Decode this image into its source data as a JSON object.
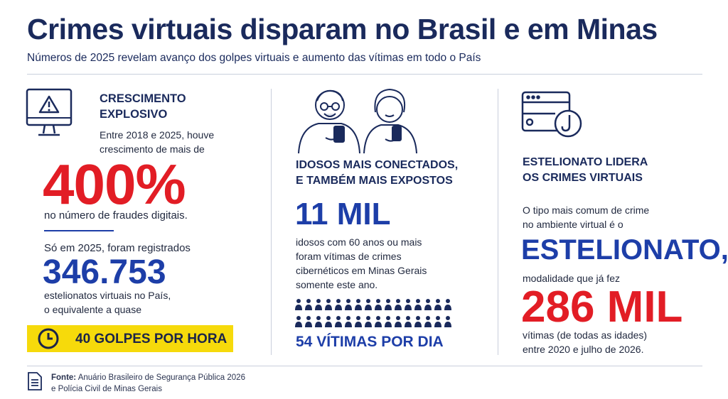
{
  "header": {
    "title": "Crimes virtuais disparam no Brasil e em Minas",
    "subtitle": "Números de 2025 revelam avanço dos golpes virtuais e aumento das vítimas em todo o País"
  },
  "columns": [
    {
      "heading": [
        "CRESCIMENTO",
        "EXPLOSIVO"
      ],
      "intro": [
        "Entre 2018 e 2025, houve",
        "crescimento de mais de"
      ],
      "highlight": "400%",
      "after": [
        "no número de fraudes digitais."
      ],
      "intro2": [
        "Só em 2025, foram registrados"
      ],
      "highlight2": "346.753",
      "after2": [
        "estelionatos virtuais no País,",
        "o equivalente a quase"
      ],
      "badge": "40 GOLPES POR HORA"
    },
    {
      "heading": [
        "IDOSOS MAIS CONECTADOS,",
        "E TAMBÉM MAIS EXPOSTOS"
      ],
      "highlight": "11 MIL",
      "after": [
        "idosos com 60 anos ou mais",
        "foram vítimas de crimes",
        "cibernéticos em Minas Gerais",
        "somente este ano."
      ],
      "badge": "54 VÍTIMAS POR DIA"
    },
    {
      "heading": [
        "ESTELIONATO LIDERA",
        "OS CRIMES VIRTUAIS"
      ],
      "intro": [
        "O tipo mais comum de crime",
        "no ambiente virtual é o"
      ],
      "highlight": "ESTELIONATO,",
      "intro2": [
        "modalidade que já fez"
      ],
      "highlight2": "286 MIL",
      "after2": [
        "vítimas (de todas as idades)",
        "entre 2020 e julho de 2026."
      ]
    }
  ],
  "footer": {
    "label": "Fonte:",
    "lines": [
      "Anuário Brasileiro de Segurança Pública 2026",
      "e Polícia Civil de Minas Gerais"
    ]
  }
}
